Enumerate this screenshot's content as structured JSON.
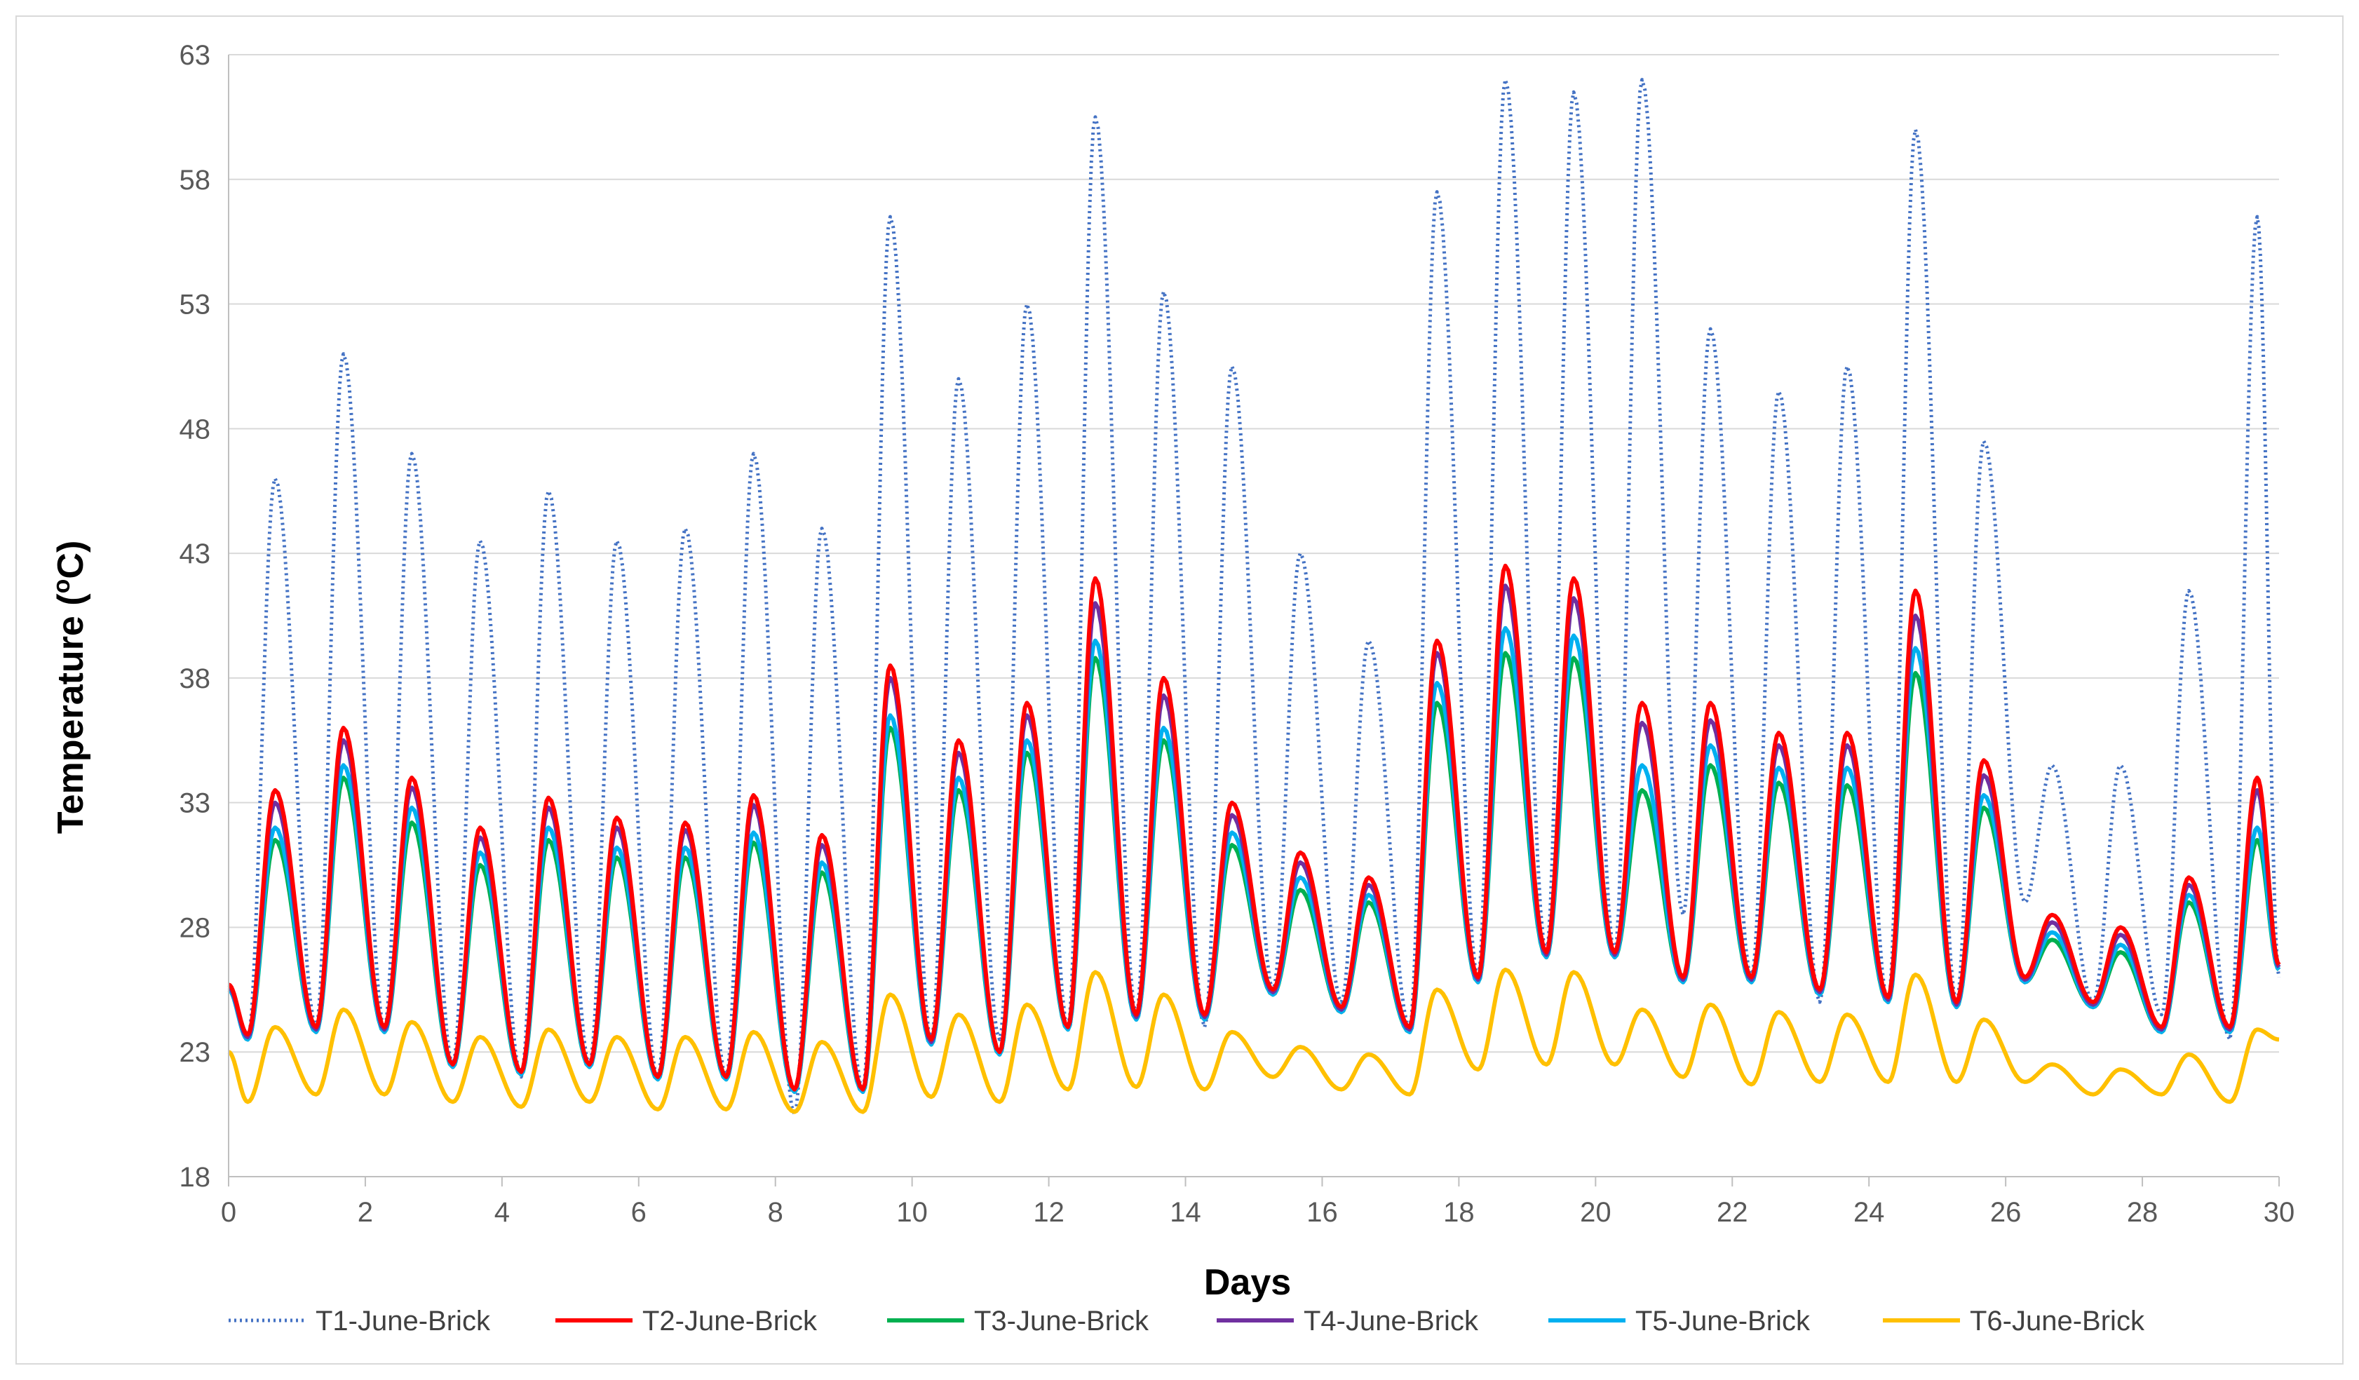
{
  "chart_data": {
    "type": "line",
    "title": "",
    "xlabel": "Days",
    "ylabel": "Temperature (oC)",
    "ylabel_parts": {
      "pre": "Temperature (",
      "sup": "o",
      "post": "C)"
    },
    "xlim": [
      0,
      30
    ],
    "ylim": [
      18,
      63
    ],
    "xticks": [
      "0",
      "2",
      "4",
      "6",
      "8",
      "10",
      "12",
      "14",
      "16",
      "18",
      "20",
      "22",
      "24",
      "26",
      "28",
      "30"
    ],
    "yticks": [
      "18",
      "23",
      "28",
      "33",
      "38",
      "43",
      "48",
      "53",
      "58",
      "63"
    ],
    "xtick_values": [
      0,
      2,
      4,
      6,
      8,
      10,
      12,
      14,
      16,
      18,
      20,
      22,
      24,
      26,
      28,
      30
    ],
    "ytick_values": [
      18,
      23,
      28,
      33,
      38,
      43,
      48,
      53,
      58,
      63
    ],
    "grid": "horizontal",
    "legend_position": "bottom",
    "series": [
      {
        "name": "T1-June-Brick",
        "color": "#4472C4",
        "dashed": true,
        "daily_max": [
          46,
          51,
          47,
          43.5,
          45.5,
          43.5,
          44,
          47,
          44,
          56.5,
          50,
          53,
          60.5,
          53.5,
          50.5,
          43,
          39.5,
          57.5,
          62,
          61.5,
          62,
          52,
          49.5,
          50.5,
          60,
          47.5,
          34.5,
          34.5,
          41.5,
          56.5
        ],
        "daily_min": [
          23.5,
          24,
          24,
          22.5,
          22,
          22.5,
          22,
          22,
          20.5,
          21.5,
          23.5,
          23.5,
          24,
          24.5,
          24,
          25.5,
          25,
          24,
          26,
          27,
          27,
          28.5,
          26,
          25,
          25,
          25,
          29,
          25,
          24.5,
          23.5
        ]
      },
      {
        "name": "T2-June-Brick",
        "color": "#FF0000",
        "dashed": false,
        "daily_max": [
          33.5,
          36,
          34,
          32,
          33.2,
          32.4,
          32.2,
          33.3,
          31.7,
          38.5,
          35.5,
          37,
          42,
          38,
          33,
          31,
          30,
          39.5,
          42.5,
          42,
          37,
          37,
          35.8,
          35.8,
          41.5,
          34.7,
          28.5,
          28,
          30,
          34
        ],
        "daily_min": [
          23.7,
          24,
          24,
          22.5,
          22.2,
          22.5,
          22,
          22,
          21.5,
          21.5,
          23.5,
          23,
          24,
          24.5,
          24.5,
          25.5,
          24.8,
          24,
          26,
          27,
          27,
          26,
          26,
          25.5,
          25.2,
          25,
          26,
          25,
          24,
          24
        ]
      },
      {
        "name": "T3-June-Brick",
        "color": "#00B050",
        "dashed": false,
        "daily_max": [
          31.5,
          34,
          32.2,
          30.5,
          31.5,
          30.8,
          30.8,
          31.4,
          30.2,
          36,
          33.5,
          35,
          38.8,
          35.5,
          31.3,
          29.5,
          29,
          37,
          39,
          38.8,
          33.5,
          34.5,
          33.8,
          33.7,
          38.2,
          32.8,
          27.5,
          27,
          29,
          31.5
        ],
        "daily_min": [
          23.5,
          23.8,
          23.8,
          22.4,
          22.1,
          22.4,
          21.9,
          21.9,
          21.4,
          21.4,
          23.3,
          22.9,
          23.9,
          24.3,
          24.3,
          25.3,
          24.6,
          23.8,
          25.8,
          26.8,
          26.8,
          25.8,
          25.8,
          25.3,
          25,
          24.8,
          25.8,
          24.8,
          23.8,
          23.8
        ]
      },
      {
        "name": "T4-June-Brick",
        "color": "#7030A0",
        "dashed": false,
        "daily_max": [
          33,
          35.5,
          33.6,
          31.6,
          32.8,
          32,
          31.9,
          32.9,
          31.3,
          38,
          35,
          36.5,
          41,
          37.3,
          32.5,
          30.6,
          29.7,
          39,
          41.7,
          41.2,
          36.2,
          36.3,
          35.3,
          35.3,
          40.5,
          34.1,
          28.2,
          27.7,
          29.7,
          33.5
        ],
        "daily_min": [
          23.6,
          23.9,
          23.9,
          22.5,
          22.2,
          22.5,
          22,
          22,
          21.5,
          21.5,
          23.4,
          23,
          24,
          24.4,
          24.4,
          25.4,
          24.7,
          23.9,
          25.9,
          26.9,
          26.9,
          25.9,
          25.9,
          25.4,
          25.1,
          24.9,
          25.9,
          24.9,
          23.9,
          23.9
        ]
      },
      {
        "name": "T5-June-Brick",
        "color": "#00B0F0",
        "dashed": false,
        "daily_max": [
          32,
          34.5,
          32.8,
          31,
          32,
          31.2,
          31.2,
          31.8,
          30.6,
          36.5,
          34,
          35.5,
          39.5,
          36,
          31.8,
          30,
          29.3,
          37.8,
          40,
          39.7,
          34.5,
          35.3,
          34.4,
          34.4,
          39.2,
          33.3,
          27.8,
          27.3,
          29.3,
          32
        ],
        "daily_min": [
          23.5,
          23.8,
          23.8,
          22.4,
          22.1,
          22.4,
          21.9,
          21.9,
          21.4,
          21.4,
          23.3,
          22.9,
          23.9,
          24.3,
          24.3,
          25.3,
          24.6,
          23.8,
          25.8,
          26.8,
          26.8,
          25.8,
          25.8,
          25.3,
          25,
          24.8,
          25.8,
          24.8,
          23.8,
          23.8
        ]
      },
      {
        "name": "T6-June-Brick",
        "color": "#FFC000",
        "dashed": false,
        "daily_max": [
          24,
          24.7,
          24.2,
          23.6,
          23.9,
          23.6,
          23.6,
          23.8,
          23.4,
          25.3,
          24.5,
          24.9,
          26.2,
          25.3,
          23.8,
          23.2,
          22.9,
          25.5,
          26.3,
          26.2,
          24.7,
          24.9,
          24.6,
          24.5,
          26.1,
          24.3,
          22.5,
          22.3,
          22.9,
          23.9
        ],
        "daily_min": [
          21,
          21.3,
          21.3,
          21,
          20.8,
          21,
          20.7,
          20.7,
          20.6,
          20.6,
          21.2,
          21,
          21.5,
          21.6,
          21.5,
          22,
          21.5,
          21.3,
          22.3,
          22.5,
          22.5,
          22,
          21.7,
          21.8,
          21.8,
          21.8,
          21.8,
          21.3,
          21.3,
          21
        ]
      }
    ]
  }
}
